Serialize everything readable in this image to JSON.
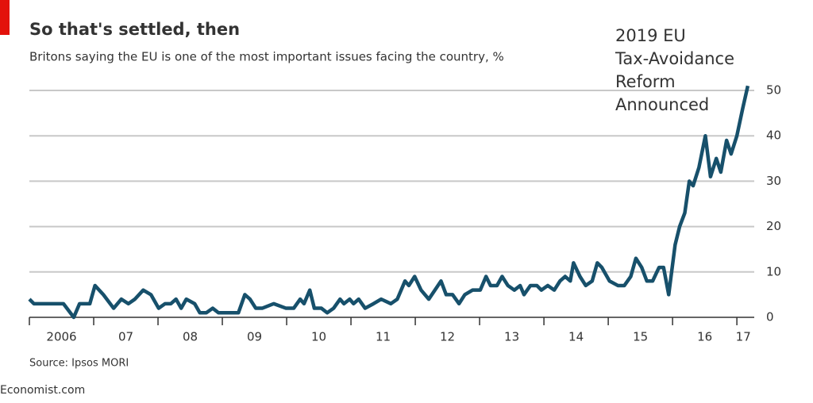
{
  "chart_data": {
    "type": "line",
    "title": "So that's settled, then",
    "subtitle": "Britons saying the EU is one of the most important issues facing the country, %",
    "annotation": [
      "2019 EU",
      "Tax-Avoidance",
      "Reform",
      "Announced"
    ],
    "source": "Source: Ipsos MORI",
    "credit": "Economist.com",
    "x": [
      2006.0,
      2006.07,
      2006.53,
      2006.69,
      2006.78,
      2006.94,
      2007.02,
      2007.15,
      2007.31,
      2007.43,
      2007.54,
      2007.64,
      2007.77,
      2007.89,
      2008.01,
      2008.11,
      2008.2,
      2008.28,
      2008.36,
      2008.44,
      2008.57,
      2008.65,
      2008.75,
      2008.85,
      2008.94,
      2009.25,
      2009.35,
      2009.43,
      2009.52,
      2009.62,
      2009.8,
      2009.99,
      2010.11,
      2010.21,
      2010.27,
      2010.36,
      2010.43,
      2010.54,
      2010.63,
      2010.73,
      2010.83,
      2010.89,
      2010.98,
      2011.04,
      2011.12,
      2011.22,
      2011.35,
      2011.47,
      2011.62,
      2011.72,
      2011.84,
      2011.9,
      2011.99,
      2012.09,
      2012.21,
      2012.4,
      2012.48,
      2012.58,
      2012.68,
      2012.77,
      2012.89,
      2013.01,
      2013.1,
      2013.17,
      2013.27,
      2013.35,
      2013.44,
      2013.54,
      2013.63,
      2013.69,
      2013.79,
      2013.89,
      2013.96,
      2014.06,
      2014.16,
      2014.25,
      2014.33,
      2014.41,
      2014.46,
      2014.56,
      2014.65,
      2014.75,
      2014.83,
      2014.9,
      2015.02,
      2015.15,
      2015.25,
      2015.35,
      2015.43,
      2015.52,
      2015.6,
      2015.69,
      2015.79,
      2015.86,
      2015.94,
      2016.04,
      2016.11,
      2016.19,
      2016.26,
      2016.32,
      2016.41,
      2016.51,
      2016.59,
      2016.68,
      2016.75,
      2016.84,
      2016.91,
      2017.0,
      2017.09,
      2017.17
    ],
    "series": [
      {
        "name": "EU as important issue",
        "color": "#17506b",
        "values": [
          4,
          3,
          3,
          0,
          3,
          3,
          7,
          5,
          2,
          4,
          3,
          4,
          6,
          5,
          2,
          3,
          3,
          4,
          2,
          4,
          3,
          1,
          1,
          2,
          1,
          1,
          5,
          4,
          2,
          2,
          3,
          2,
          2,
          4,
          3,
          6,
          2,
          2,
          1,
          2,
          4,
          3,
          4,
          3,
          4,
          2,
          3,
          4,
          3,
          4,
          8,
          7,
          9,
          6,
          4,
          8,
          5,
          5,
          3,
          5,
          6,
          6,
          9,
          7,
          7,
          9,
          7,
          6,
          7,
          5,
          7,
          7,
          6,
          7,
          6,
          8,
          9,
          8,
          12,
          9,
          7,
          8,
          12,
          11,
          8,
          7,
          7,
          9,
          13,
          11,
          8,
          8,
          11,
          11,
          5,
          16,
          20,
          23,
          30,
          29,
          33,
          40,
          31,
          35,
          32,
          39,
          36,
          40,
          46,
          51
        ]
      }
    ],
    "xlim": [
      2006,
      2017.27
    ],
    "xticks": [
      2006,
      2007,
      2008,
      2009,
      2010,
      2011,
      2012,
      2013,
      2014,
      2015,
      2016,
      2017
    ],
    "xtick_labels": [
      {
        "value": 2006.5,
        "label": "2006"
      },
      {
        "value": 2007.5,
        "label": "07"
      },
      {
        "value": 2008.5,
        "label": "08"
      },
      {
        "value": 2009.5,
        "label": "09"
      },
      {
        "value": 2010.5,
        "label": "10"
      },
      {
        "value": 2011.5,
        "label": "11"
      },
      {
        "value": 2012.5,
        "label": "12"
      },
      {
        "value": 2013.5,
        "label": "13"
      },
      {
        "value": 2014.5,
        "label": "14"
      },
      {
        "value": 2015.5,
        "label": "15"
      },
      {
        "value": 2016.5,
        "label": "16"
      },
      {
        "value": 2017.1,
        "label": "17"
      }
    ],
    "ylim": [
      0,
      50
    ],
    "yticks": [
      0,
      10,
      20,
      30,
      40,
      50
    ],
    "grid": true
  }
}
